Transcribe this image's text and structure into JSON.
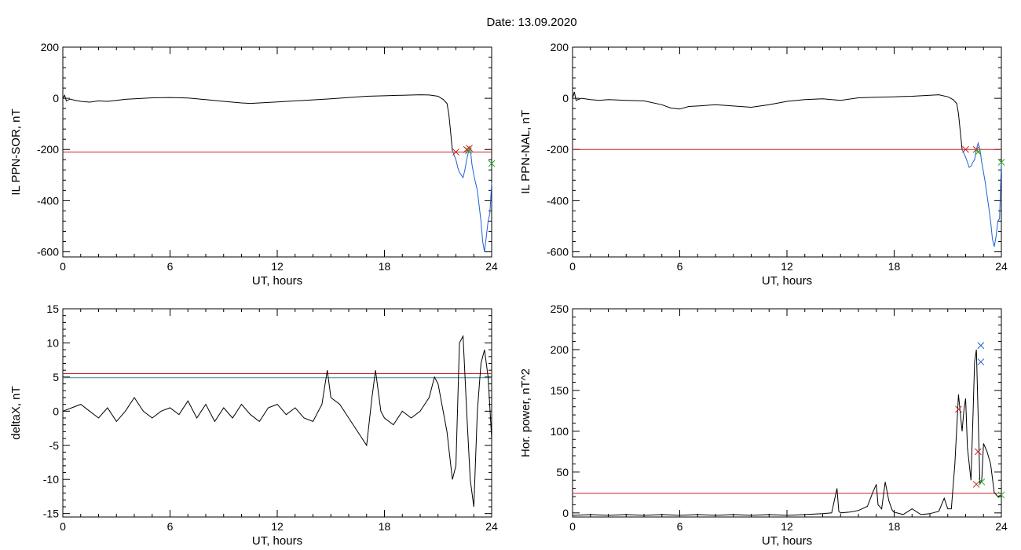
{
  "figure_title": "Date:  13.09.2020",
  "chart_data": [
    {
      "id": "sor",
      "type": "line",
      "xlabel": "UT, hours",
      "ylabel": "IL PPN-SOR, nT",
      "xlim": [
        0,
        24
      ],
      "ylim": [
        -620,
        200
      ],
      "xticks": [
        0,
        6,
        12,
        18,
        24
      ],
      "yticks": [
        -600,
        -400,
        -200,
        0,
        200
      ],
      "threshold": -210,
      "series": [
        {
          "color": "#000000",
          "x": [
            0,
            0.1,
            0.2,
            0.4,
            0.7,
            1,
            1.5,
            2,
            2.5,
            3,
            3.5,
            4,
            5,
            6,
            7,
            8,
            9,
            10,
            10.5,
            11,
            12,
            13,
            14,
            15,
            16,
            17,
            18,
            19,
            20,
            20.5,
            21,
            21.3,
            21.5,
            21.6,
            21.7,
            21.8
          ],
          "y": [
            0,
            12,
            -10,
            -3,
            -8,
            -12,
            -15,
            -10,
            -12,
            -8,
            -4,
            -2,
            2,
            3,
            1,
            -5,
            -12,
            -18,
            -20,
            -18,
            -14,
            -10,
            -6,
            -2,
            3,
            8,
            10,
            12,
            14,
            13,
            8,
            -5,
            -20,
            -60,
            -130,
            -205
          ]
        },
        {
          "color": "#1f5fd6",
          "x": [
            21.8,
            22,
            22.1,
            22.2,
            22.3,
            22.4,
            22.5,
            22.6,
            22.7,
            22.8,
            22.9,
            23.0,
            23.1,
            23.2,
            23.3,
            23.4,
            23.5,
            23.6,
            23.7,
            23.8,
            23.9,
            24
          ],
          "y": [
            -205,
            -240,
            -270,
            -290,
            -300,
            -310,
            -280,
            -240,
            -210,
            -195,
            -260,
            -300,
            -330,
            -360,
            -420,
            -480,
            -560,
            -600,
            -540,
            -480,
            -450,
            -330
          ]
        }
      ],
      "markers": [
        {
          "x": 22.0,
          "y": -210,
          "color": "#cc2222"
        },
        {
          "x": 22.6,
          "y": -200,
          "color": "#cc2222"
        },
        {
          "x": 22.7,
          "y": -205,
          "color": "#22aa22"
        },
        {
          "x": 22.75,
          "y": -195,
          "color": "#cc2222"
        },
        {
          "x": 24,
          "y": -255,
          "color": "#22aa22"
        }
      ]
    },
    {
      "id": "nal",
      "type": "line",
      "xlabel": "UT, hours",
      "ylabel": "IL PPN-NAL, nT",
      "xlim": [
        0,
        24
      ],
      "ylim": [
        -620,
        200
      ],
      "xticks": [
        0,
        6,
        12,
        18,
        24
      ],
      "yticks": [
        -600,
        -400,
        -200,
        0,
        200
      ],
      "threshold": -200,
      "series": [
        {
          "color": "#000000",
          "x": [
            0,
            0.1,
            0.2,
            0.5,
            1,
            1.5,
            2,
            3,
            4,
            5,
            5.5,
            6,
            6.5,
            7,
            8,
            9,
            10,
            11,
            12,
            13,
            14,
            15,
            16,
            17,
            18,
            19,
            20,
            20.5,
            21,
            21.3,
            21.5,
            21.6,
            21.7,
            21.8
          ],
          "y": [
            0,
            25,
            -8,
            0,
            -5,
            -8,
            -5,
            -8,
            -10,
            -25,
            -38,
            -42,
            -32,
            -30,
            -25,
            -30,
            -35,
            -25,
            -12,
            -5,
            -2,
            -8,
            2,
            4,
            6,
            8,
            12,
            14,
            6,
            -5,
            -20,
            -60,
            -130,
            -200
          ]
        },
        {
          "color": "#1f5fd6",
          "x": [
            21.8,
            22,
            22.1,
            22.2,
            22.3,
            22.4,
            22.5,
            22.6,
            22.7,
            22.8,
            22.9,
            23.0,
            23.1,
            23.2,
            23.3,
            23.4,
            23.5,
            23.6,
            23.7,
            23.8,
            23.9,
            24
          ],
          "y": [
            -200,
            -230,
            -250,
            -270,
            -265,
            -250,
            -240,
            -200,
            -175,
            -200,
            -250,
            -290,
            -330,
            -380,
            -430,
            -480,
            -550,
            -580,
            -540,
            -480,
            -470,
            -250
          ]
        }
      ],
      "markers": [
        {
          "x": 22.0,
          "y": -200,
          "color": "#cc2222"
        },
        {
          "x": 22.6,
          "y": -200,
          "color": "#cc2222"
        },
        {
          "x": 22.7,
          "y": -210,
          "color": "#22aa22"
        },
        {
          "x": 24,
          "y": -250,
          "color": "#22aa22"
        }
      ]
    },
    {
      "id": "deltax",
      "type": "line",
      "xlabel": "UT, hours",
      "ylabel": "deltaX, nT",
      "xlim": [
        0,
        24
      ],
      "ylim": [
        -15.5,
        15
      ],
      "xticks": [
        0,
        6,
        12,
        18,
        24
      ],
      "yticks": [
        -15,
        -10,
        -5,
        0,
        5,
        10,
        15
      ],
      "threshold": 5.5,
      "threshold2": 4.9,
      "series": [
        {
          "color": "#000000",
          "x": [
            0,
            0.5,
            1,
            1.5,
            2,
            2.5,
            3,
            3.5,
            4,
            4.5,
            5,
            5.5,
            6,
            6.5,
            7,
            7.5,
            8,
            8.5,
            9,
            9.5,
            10,
            10.5,
            11,
            11.5,
            12,
            12.5,
            13,
            13.5,
            14,
            14.5,
            14.8,
            15,
            15.5,
            16,
            16.5,
            17,
            17.3,
            17.5,
            17.8,
            18,
            18.5,
            19,
            19.5,
            20,
            20.5,
            20.8,
            21,
            21.5,
            21.8,
            22,
            22.2,
            22.4,
            22.6,
            22.8,
            23,
            23.2,
            23.4,
            23.6,
            23.8,
            24
          ],
          "y": [
            0,
            0.5,
            1,
            0,
            -1,
            0.5,
            -1.5,
            0,
            2,
            0,
            -1,
            0,
            0.5,
            -0.5,
            1.5,
            -1,
            1,
            -1.5,
            0.5,
            -1,
            1,
            -0.5,
            -1.5,
            0.5,
            1,
            -0.5,
            0.5,
            -1,
            -1.5,
            1,
            6,
            2,
            1,
            -1,
            -3,
            -5,
            2,
            6,
            0,
            -1,
            -2,
            0,
            -1,
            0,
            2,
            5,
            4,
            -3,
            -10,
            -8,
            10,
            11,
            0,
            -10,
            -14,
            0,
            7,
            9,
            5,
            -4
          ]
        }
      ],
      "markers": []
    },
    {
      "id": "power",
      "type": "line",
      "xlabel": "UT, hours",
      "ylabel": "Hor. power, nT^2",
      "xlim": [
        0,
        24
      ],
      "ylim": [
        -5,
        250
      ],
      "xticks": [
        0,
        6,
        12,
        18,
        24
      ],
      "yticks": [
        0,
        50,
        100,
        150,
        200,
        250
      ],
      "threshold": 24,
      "series": [
        {
          "color": "#000000",
          "x": [
            0,
            1,
            2,
            3,
            4,
            5,
            6,
            7,
            8,
            9,
            10,
            11,
            12,
            13,
            14,
            14.5,
            14.8,
            14.9,
            15,
            15.5,
            16,
            16.5,
            16.8,
            17,
            17.1,
            17.3,
            17.5,
            17.7,
            17.9,
            18,
            18.5,
            19,
            19.5,
            20,
            20.5,
            20.8,
            21,
            21.2,
            21.4,
            21.6,
            21.8,
            21.9,
            22,
            22.1,
            22.3,
            22.4,
            22.5,
            22.6,
            22.7,
            22.8,
            22.9,
            23,
            23.2,
            23.4,
            23.6,
            23.8,
            24
          ],
          "y": [
            -3,
            -2,
            -3,
            -2,
            -3,
            -2,
            -3,
            -2,
            -3,
            -2,
            -3,
            -2,
            -3,
            -2,
            -1,
            0,
            30,
            2,
            0,
            1,
            3,
            8,
            25,
            35,
            10,
            5,
            38,
            15,
            3,
            1,
            -2,
            5,
            -2,
            -1,
            2,
            18,
            5,
            5,
            60,
            145,
            100,
            125,
            140,
            80,
            40,
            110,
            185,
            200,
            120,
            35,
            40,
            85,
            75,
            60,
            25,
            20,
            22
          ]
        }
      ],
      "markers": [
        {
          "x": 21.6,
          "y": 127,
          "color": "#cc2222"
        },
        {
          "x": 22.7,
          "y": 75,
          "color": "#cc2222"
        },
        {
          "x": 22.6,
          "y": 35,
          "color": "#cc2222"
        },
        {
          "x": 22.9,
          "y": 38,
          "color": "#22aa22"
        },
        {
          "x": 22.85,
          "y": 205,
          "color": "#1f5fd6"
        },
        {
          "x": 22.85,
          "y": 185,
          "color": "#1f5fd6"
        },
        {
          "x": 24,
          "y": 22,
          "color": "#22aa22"
        }
      ]
    }
  ],
  "colors": {
    "threshold": "#cc2222",
    "threshold2": "#3a8a8a"
  }
}
